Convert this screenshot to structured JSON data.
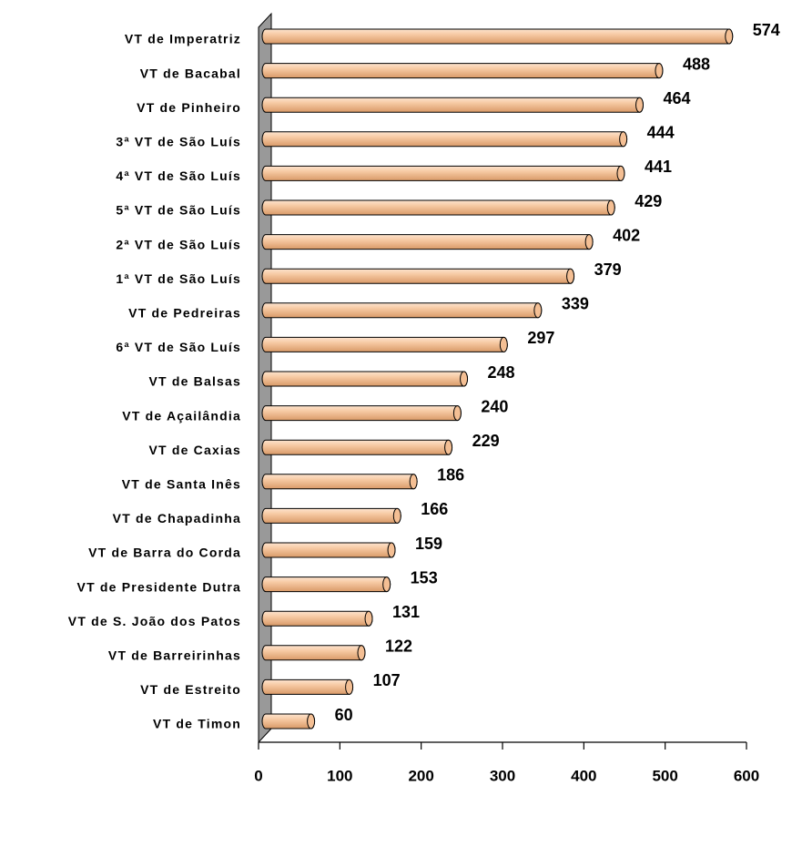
{
  "chart_data": {
    "type": "bar",
    "orientation": "horizontal",
    "categories": [
      "VT de Imperatriz",
      "VT de Bacabal",
      "VT de Pinheiro",
      "3ª VT de São Luís",
      "4ª VT de São Luís",
      "5ª VT de São Luís",
      "2ª VT de São Luís",
      "1ª VT de São Luís",
      "VT de Pedreiras",
      "6ª VT de São Luís",
      "VT de Balsas",
      "VT de Açailândia",
      "VT de Caxias",
      "VT de Santa Inês",
      "VT de Chapadinha",
      "VT de Barra do Corda",
      "VT de Presidente Dutra",
      "VT de S. João dos Patos",
      "VT de Barreirinhas",
      "VT de Estreito",
      "VT de Timon"
    ],
    "values": [
      574,
      488,
      464,
      444,
      441,
      429,
      402,
      379,
      339,
      297,
      248,
      240,
      229,
      186,
      166,
      159,
      153,
      131,
      122,
      107,
      60
    ],
    "color": "#f4bf94",
    "xlim": [
      0,
      600
    ],
    "xticks": [
      0,
      100,
      200,
      300,
      400,
      500,
      600
    ]
  }
}
